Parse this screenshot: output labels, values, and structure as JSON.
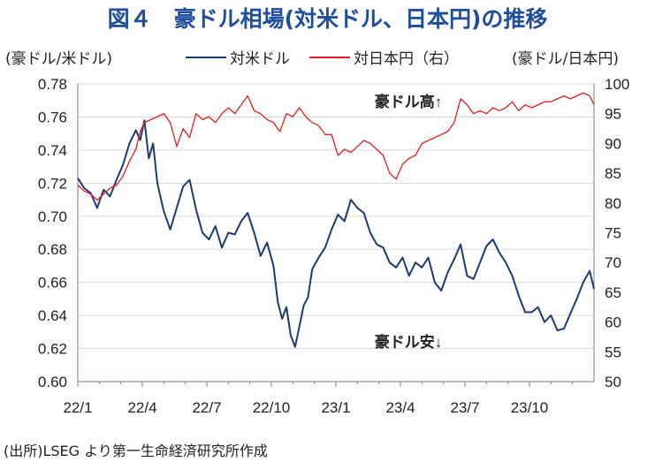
{
  "title": "図４　豪ドル相場(対米ドル、日本円)の推移",
  "left_unit": "(豪ドル/米ドル)",
  "right_unit": "(豪ドル/日本円)",
  "source": "(出所)LSEG より第一生命経済研究所作成",
  "annotations": {
    "up": "豪ドル高↑",
    "down": "豪ドル安↓"
  },
  "colors": {
    "usd": "#1f3a6e",
    "jpy": "#e02020",
    "title": "#1f4e9a",
    "grid": "#d9d9d9",
    "axis": "#7f7f7f"
  },
  "chart_data": {
    "type": "line",
    "x_tick_labels": [
      "22/1",
      "22/4",
      "22/7",
      "22/10",
      "23/1",
      "23/4",
      "23/7",
      "23/10"
    ],
    "x_range_months": [
      0,
      24
    ],
    "y_left": {
      "label": "(豪ドル/米ドル)",
      "range": [
        0.6,
        0.78
      ],
      "ticks": [
        "0.60",
        "0.62",
        "0.64",
        "0.66",
        "0.68",
        "0.70",
        "0.72",
        "0.74",
        "0.76",
        "0.78"
      ]
    },
    "y_right": {
      "label": "(豪ドル/日本円)",
      "range": [
        50,
        100
      ],
      "ticks": [
        "50",
        "55",
        "60",
        "65",
        "70",
        "75",
        "80",
        "85",
        "90",
        "95",
        "100"
      ]
    },
    "grid": true,
    "series": [
      {
        "name": "対米ドル",
        "axis": "left",
        "x": [
          0,
          0.3,
          0.6,
          0.9,
          1.2,
          1.5,
          1.8,
          2.1,
          2.4,
          2.7,
          2.9,
          3.1,
          3.3,
          3.5,
          3.7,
          4.0,
          4.3,
          4.6,
          4.9,
          5.2,
          5.5,
          5.8,
          6.1,
          6.4,
          6.7,
          7.0,
          7.3,
          7.6,
          7.9,
          8.2,
          8.5,
          8.8,
          9.1,
          9.3,
          9.5,
          9.7,
          9.9,
          10.1,
          10.3,
          10.5,
          10.7,
          10.9,
          11.2,
          11.5,
          11.8,
          12.1,
          12.4,
          12.7,
          13.0,
          13.3,
          13.6,
          13.9,
          14.2,
          14.5,
          14.8,
          15.1,
          15.4,
          15.7,
          16.0,
          16.3,
          16.6,
          16.9,
          17.2,
          17.5,
          17.8,
          18.1,
          18.4,
          18.7,
          19.0,
          19.3,
          19.6,
          19.9,
          20.2,
          20.5,
          20.8,
          21.1,
          21.4,
          21.7,
          22.0,
          22.3,
          22.6,
          22.9,
          23.2,
          23.5,
          23.8,
          24.0
        ],
        "values": [
          0.723,
          0.717,
          0.714,
          0.705,
          0.716,
          0.712,
          0.722,
          0.731,
          0.744,
          0.752,
          0.746,
          0.758,
          0.735,
          0.744,
          0.72,
          0.703,
          0.692,
          0.705,
          0.718,
          0.722,
          0.704,
          0.69,
          0.686,
          0.694,
          0.681,
          0.69,
          0.689,
          0.697,
          0.702,
          0.69,
          0.676,
          0.684,
          0.67,
          0.648,
          0.638,
          0.645,
          0.628,
          0.621,
          0.633,
          0.646,
          0.651,
          0.668,
          0.675,
          0.681,
          0.692,
          0.701,
          0.697,
          0.71,
          0.705,
          0.702,
          0.69,
          0.683,
          0.681,
          0.672,
          0.669,
          0.675,
          0.664,
          0.672,
          0.669,
          0.675,
          0.66,
          0.655,
          0.666,
          0.674,
          0.683,
          0.664,
          0.662,
          0.672,
          0.682,
          0.686,
          0.678,
          0.672,
          0.664,
          0.652,
          0.642,
          0.642,
          0.645,
          0.636,
          0.64,
          0.631,
          0.632,
          0.641,
          0.65,
          0.66,
          0.667,
          0.656
        ]
      },
      {
        "name": "対日本円（右）",
        "axis": "right",
        "x": [
          0,
          0.3,
          0.6,
          0.9,
          1.2,
          1.5,
          1.8,
          2.1,
          2.4,
          2.7,
          2.9,
          3.1,
          3.4,
          3.7,
          4.0,
          4.3,
          4.6,
          4.9,
          5.2,
          5.5,
          5.8,
          6.1,
          6.4,
          6.7,
          7.0,
          7.3,
          7.6,
          7.9,
          8.2,
          8.5,
          8.8,
          9.1,
          9.4,
          9.7,
          10.0,
          10.3,
          10.6,
          10.9,
          11.2,
          11.5,
          11.8,
          12.1,
          12.4,
          12.7,
          13.0,
          13.3,
          13.6,
          13.9,
          14.2,
          14.5,
          14.8,
          15.1,
          15.4,
          15.7,
          16.0,
          16.3,
          16.6,
          16.9,
          17.2,
          17.5,
          17.8,
          18.1,
          18.4,
          18.7,
          19.0,
          19.3,
          19.6,
          19.9,
          20.2,
          20.5,
          20.8,
          21.1,
          21.4,
          21.7,
          22.0,
          22.3,
          22.6,
          22.9,
          23.2,
          23.5,
          23.8,
          24.0
        ],
        "values": [
          83.0,
          82.0,
          81.5,
          80.5,
          81.5,
          82.5,
          83.0,
          84.5,
          87.0,
          89.0,
          92.0,
          93.5,
          94.0,
          94.5,
          95.0,
          93.5,
          89.5,
          92.5,
          91.0,
          95.0,
          94.0,
          94.5,
          93.5,
          95.0,
          96.0,
          95.0,
          96.5,
          98.0,
          95.5,
          95.0,
          94.0,
          93.5,
          92.0,
          95.0,
          94.5,
          96.0,
          94.5,
          93.5,
          93.0,
          91.5,
          91.5,
          88.0,
          89.0,
          88.5,
          89.5,
          90.5,
          90.0,
          89.0,
          88.0,
          85.0,
          84.0,
          86.5,
          87.5,
          88.0,
          90.0,
          90.5,
          91.0,
          91.5,
          92.0,
          93.5,
          97.5,
          96.5,
          95.0,
          95.5,
          95.0,
          96.0,
          95.5,
          96.0,
          97.0,
          95.5,
          96.5,
          96.0,
          96.5,
          97.0,
          97.0,
          97.5,
          98.0,
          97.5,
          98.0,
          98.5,
          98.0,
          96.5
        ]
      }
    ]
  }
}
